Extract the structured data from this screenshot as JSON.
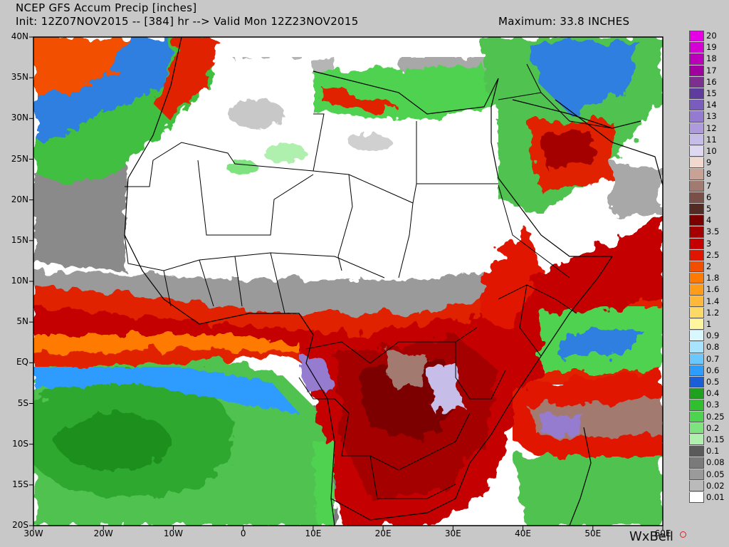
{
  "header": {
    "title": "NCEP GFS Accum Precip [inches]",
    "init_line": "Init: 12Z07NOV2015 -- [384] hr --> Valid Mon 12Z23NOV2015",
    "maximum": "Maximum: 33.8 INCHES"
  },
  "lat_labels": [
    "40N",
    "35N",
    "30N",
    "25N",
    "20N",
    "15N",
    "10N",
    "5N",
    "EQ",
    "5S",
    "10S",
    "15S",
    "20S"
  ],
  "lon_labels": [
    "30W",
    "20W",
    "10W",
    "0",
    "10E",
    "20E",
    "30E",
    "40E",
    "50E",
    "60E"
  ],
  "legend": [
    {
      "label": "20",
      "color": "#e600e6"
    },
    {
      "label": "19",
      "color": "#d400d4"
    },
    {
      "label": "18",
      "color": "#bb00bb"
    },
    {
      "label": "17",
      "color": "#a000a0"
    },
    {
      "label": "16",
      "color": "#7d2f8f"
    },
    {
      "label": "15",
      "color": "#5f3a9f"
    },
    {
      "label": "14",
      "color": "#7a5cbf"
    },
    {
      "label": "13",
      "color": "#957bcf"
    },
    {
      "label": "12",
      "color": "#ad9bdc"
    },
    {
      "label": "11",
      "color": "#c6bde8"
    },
    {
      "label": "10",
      "color": "#ded8f2"
    },
    {
      "label": "9",
      "color": "#f1d9cf"
    },
    {
      "label": "8",
      "color": "#c9a195"
    },
    {
      "label": "7",
      "color": "#a37a70"
    },
    {
      "label": "6",
      "color": "#7a4f47"
    },
    {
      "label": "5",
      "color": "#542a24"
    },
    {
      "label": "4",
      "color": "#7d0000"
    },
    {
      "label": "3.5",
      "color": "#a50000"
    },
    {
      "label": "3",
      "color": "#c40000"
    },
    {
      "label": "2.5",
      "color": "#e01500"
    },
    {
      "label": "2",
      "color": "#f24e00"
    },
    {
      "label": "1.8",
      "color": "#ff7a00"
    },
    {
      "label": "1.6",
      "color": "#ff9d1a"
    },
    {
      "label": "1.4",
      "color": "#ffb83a"
    },
    {
      "label": "1.2",
      "color": "#ffd966"
    },
    {
      "label": "1",
      "color": "#fff6a0"
    },
    {
      "label": "0.9",
      "color": "#d9f7ff"
    },
    {
      "label": "0.8",
      "color": "#a8e4ff"
    },
    {
      "label": "0.7",
      "color": "#6bc7ff"
    },
    {
      "label": "0.6",
      "color": "#2d9cff"
    },
    {
      "label": "0.5",
      "color": "#1a5fd6"
    },
    {
      "label": "0.4",
      "color": "#1fa01f"
    },
    {
      "label": "0.3",
      "color": "#2fbf2f"
    },
    {
      "label": "0.25",
      "color": "#4fd24f"
    },
    {
      "label": "0.2",
      "color": "#7ee37e"
    },
    {
      "label": "0.15",
      "color": "#aff0af"
    },
    {
      "label": "0.1",
      "color": "#5a5a5a"
    },
    {
      "label": "0.08",
      "color": "#7a7a7a"
    },
    {
      "label": "0.05",
      "color": "#9a9a9a"
    },
    {
      "label": "0.02",
      "color": "#bababa"
    },
    {
      "label": "0.01",
      "color": "#ffffff"
    }
  ],
  "brand": "WxBell"
}
